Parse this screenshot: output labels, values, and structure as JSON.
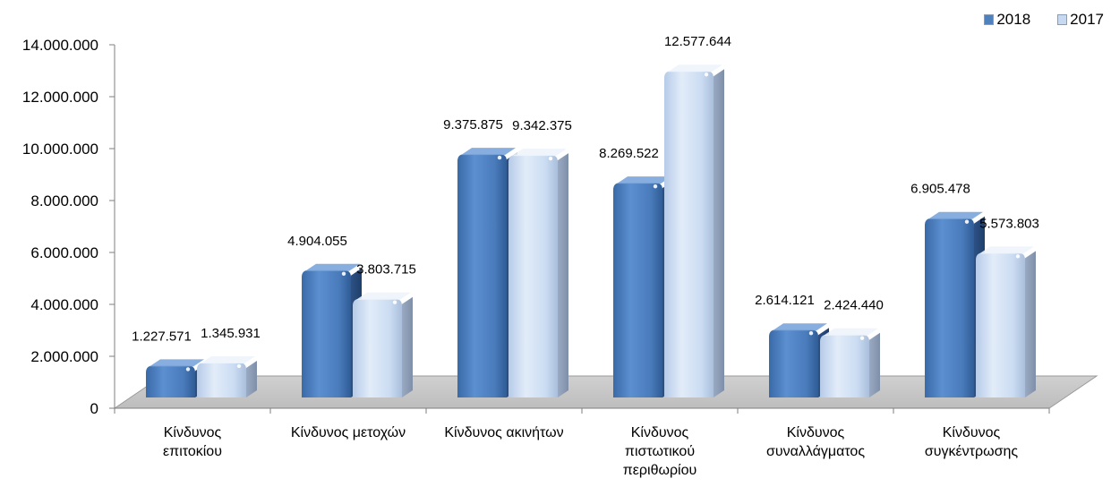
{
  "chart_data": {
    "type": "bar",
    "categories": [
      [
        "Κίνδυνος",
        "επιτοκίου"
      ],
      [
        "Κίνδυνος μετοχών"
      ],
      [
        "Κίνδυνος ακινήτων"
      ],
      [
        "Κίνδυνος",
        "πιστωτικού",
        "περιθωρίου"
      ],
      [
        "Κίνδυνος",
        "συναλλάγματος"
      ],
      [
        "Κίνδυνος",
        "συγκέντρωσης"
      ]
    ],
    "series": [
      {
        "name": "2018",
        "values": [
          1227571,
          4904055,
          9375875,
          8269522,
          2614121,
          6905478
        ],
        "labels": [
          "1.227.571",
          "4.904.055",
          "9.375.875",
          "8.269.522",
          "2.614.121",
          "6.905.478"
        ]
      },
      {
        "name": "2017",
        "values": [
          1345931,
          3803715,
          9342375,
          12577644,
          2424440,
          5573803
        ],
        "labels": [
          "1.345.931",
          "3.803.715",
          "9.342.375",
          "12.577.644",
          "2.424.440",
          "5.573.803"
        ]
      }
    ],
    "ylim": [
      0,
      14000000
    ],
    "yticks": [
      "0",
      "2.000.000",
      "4.000.000",
      "6.000.000",
      "8.000.000",
      "10.000.000",
      "12.000.000",
      "14.000.000"
    ],
    "legend": {
      "position": "top-right"
    },
    "grid": false,
    "colors": {
      "2018": "#4f81bd",
      "2017": "#c6d9f1"
    }
  }
}
